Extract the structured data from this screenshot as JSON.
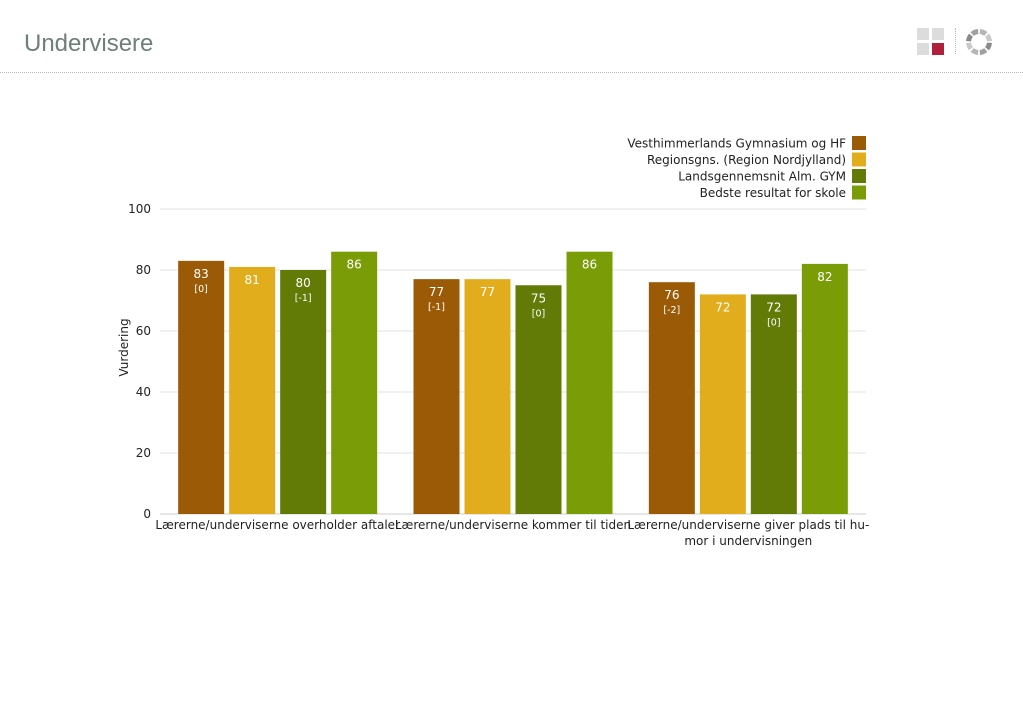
{
  "header": {
    "title": "Undervisere",
    "logo_colors": [
      "#dcdcdc",
      "#dcdcdc",
      "#dcdcdc",
      "#b0203a"
    ],
    "ring_icon": "circular-segments-icon"
  },
  "chart_data": {
    "type": "bar",
    "title": "",
    "xlabel": "",
    "ylabel": "Vurdering",
    "ylim": [
      0,
      100
    ],
    "yticks": [
      0,
      20,
      40,
      60,
      80,
      100
    ],
    "grid": true,
    "legend_position": "top-right",
    "categories": [
      [
        "Lærerne/underviserne overholder aftaler"
      ],
      [
        "Lærerne/underviserne kommer til tiden"
      ],
      [
        "Lærerne/underviserne giver plads til hu-",
        "mor i undervisningen"
      ]
    ],
    "series": [
      {
        "name": "Vesthimmerlands Gymnasium og HF",
        "color": "#9a5a06",
        "values": [
          83,
          77,
          76
        ],
        "labels": [
          "83",
          "77",
          "76"
        ],
        "sublabels": [
          "[0]",
          "[-1]",
          "[-2]"
        ]
      },
      {
        "name": "Regionsgns. (Region Nordjylland)",
        "color": "#e1ad1c",
        "values": [
          81,
          77,
          72
        ],
        "labels": [
          "81",
          "77",
          "72"
        ],
        "sublabels": [
          "",
          "",
          ""
        ]
      },
      {
        "name": "Landsgennemsnit Alm. GYM",
        "color": "#627a06",
        "values": [
          80,
          75,
          72
        ],
        "labels": [
          "80",
          "75",
          "72"
        ],
        "sublabels": [
          "[-1]",
          "[0]",
          "[0]"
        ]
      },
      {
        "name": "Bedste resultat for skole",
        "color": "#7a9c06",
        "values": [
          86,
          86,
          82
        ],
        "labels": [
          "86",
          "86",
          "82"
        ],
        "sublabels": [
          "",
          "",
          ""
        ]
      }
    ]
  }
}
